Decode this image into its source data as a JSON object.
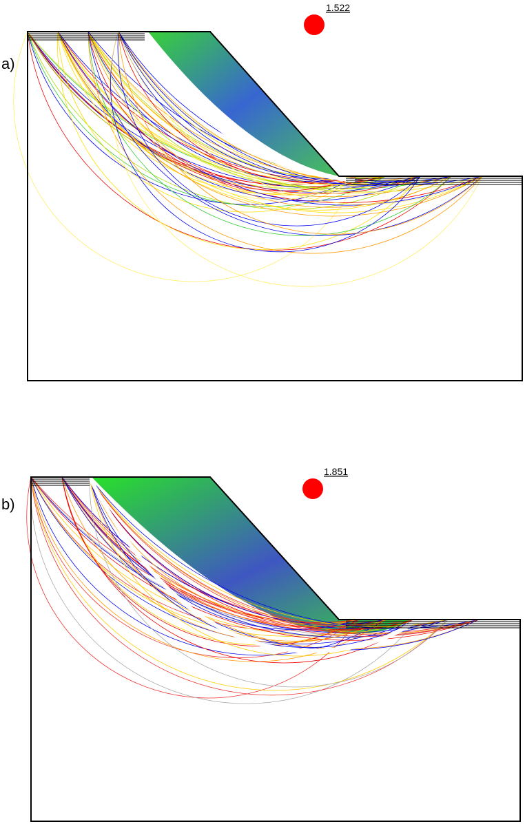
{
  "panel_a": {
    "label": "a)",
    "factor_of_safety": "1.522"
  },
  "panel_b": {
    "label": "b)",
    "factor_of_safety": "1.851"
  }
}
